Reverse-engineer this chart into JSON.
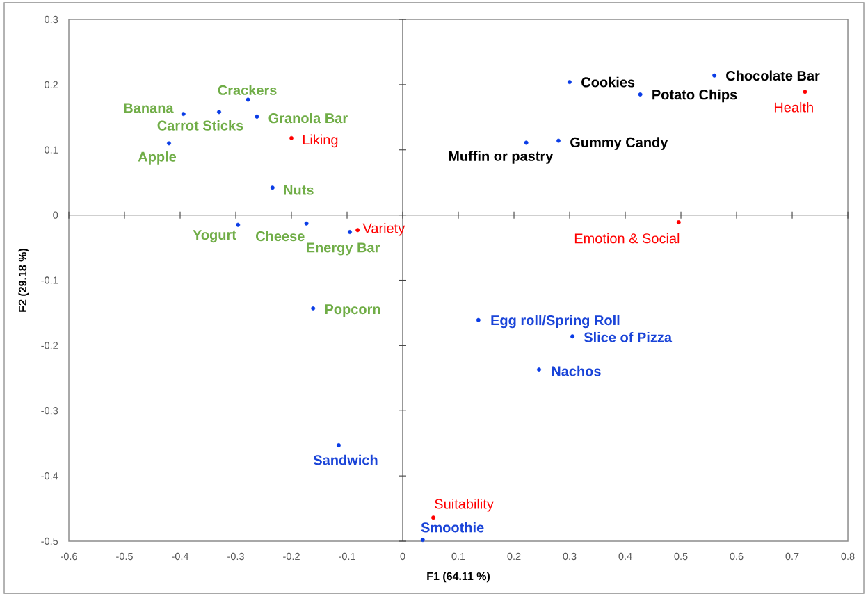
{
  "chart_data": {
    "type": "scatter",
    "xlabel": "F1 (64.11 %)",
    "ylabel": "F2 (29.18 %)",
    "xlim": [
      -0.6,
      0.8
    ],
    "ylim": [
      -0.5,
      0.3
    ],
    "xticks": [
      -0.6,
      -0.5,
      -0.4,
      -0.3,
      -0.2,
      -0.1,
      0,
      0.1,
      0.2,
      0.3,
      0.4,
      0.5,
      0.6,
      0.7,
      0.8
    ],
    "yticks": [
      -0.5,
      -0.4,
      -0.3,
      -0.2,
      -0.1,
      0,
      0.1,
      0.2,
      0.3
    ],
    "marker": "circle",
    "series": [
      {
        "color": "#0a3ce6",
        "x": [
          -0.394,
          -0.33,
          -0.278,
          -0.262,
          -0.42,
          -0.234,
          -0.296,
          -0.173,
          -0.095,
          -0.161
        ],
        "values": [
          0.155,
          0.158,
          0.177,
          0.151,
          0.11,
          0.042,
          -0.015,
          -0.013,
          -0.026,
          -0.143
        ],
        "value_labels": [
          "Banana",
          "Carrot Sticks",
          "Crackers",
          "Granola Bar",
          "Apple",
          "Nuts",
          "Yogurt",
          "Cheese",
          "Energy Bar",
          "Popcorn"
        ]
      },
      {
        "color": "#0a3ce6",
        "x": [
          0.3,
          0.427,
          0.56,
          0.222,
          0.28
        ],
        "values": [
          0.204,
          0.185,
          0.214,
          0.111,
          0.114
        ],
        "value_labels": [
          "Cookies",
          "Potato Chips",
          "Chocolate Bar",
          "Muffin or pastry",
          "Gummy Candy"
        ]
      },
      {
        "color": "#0a3ce6",
        "x": [
          0.136,
          0.305,
          0.245,
          -0.115,
          0.036
        ],
        "values": [
          -0.161,
          -0.186,
          -0.237,
          -0.353,
          -0.498
        ],
        "value_labels": [
          "Egg roll/Spring Roll",
          "Slice of Pizza",
          "Nachos",
          "Sandwich",
          "Smoothie"
        ]
      },
      {
        "color": "#ff0000",
        "x": [
          -0.2,
          -0.081,
          0.496,
          0.723,
          0.055
        ],
        "values": [
          0.118,
          -0.023,
          -0.011,
          0.189,
          -0.464
        ],
        "value_labels": [
          "Liking",
          "Variety",
          "Emotion & Social",
          "Health",
          "Suitability"
        ]
      }
    ]
  }
}
